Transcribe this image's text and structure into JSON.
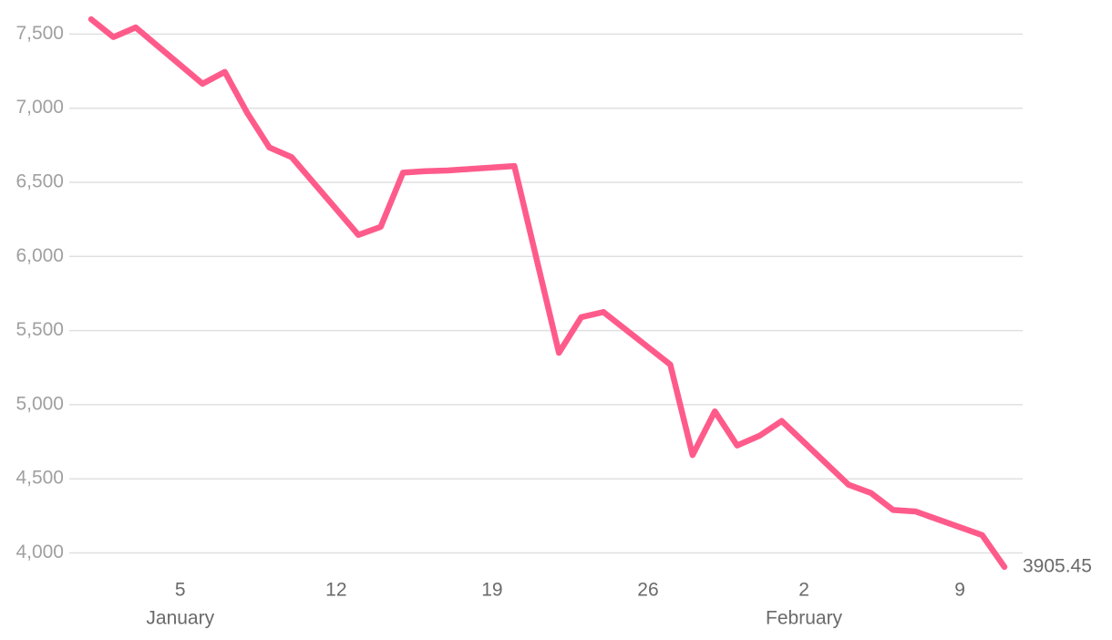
{
  "chart_data": {
    "type": "line",
    "x": [
      "01-01",
      "01-02",
      "01-03",
      "01-06",
      "01-07",
      "01-08",
      "01-09",
      "01-10",
      "01-13",
      "01-14",
      "01-15",
      "01-16",
      "01-17",
      "01-20",
      "01-22",
      "01-23",
      "01-24",
      "01-27",
      "01-28",
      "01-29",
      "01-30",
      "01-31",
      "02-01",
      "02-04",
      "02-05",
      "02-06",
      "02-07",
      "02-10",
      "02-11"
    ],
    "series": [
      {
        "color": "#fe5b8b",
        "values": [
          7600,
          7480,
          7545,
          7165,
          7245,
          6970,
          6735,
          6670,
          6145,
          6200,
          6565,
          6575,
          6580,
          6610,
          5350,
          5590,
          5625,
          5270,
          4660,
          4955,
          4725,
          4790,
          4890,
          4460,
          4405,
          4290,
          4280,
          4120,
          3905.45
        ]
      }
    ],
    "xlim": [
      "01-01",
      "02-11"
    ],
    "xticks": [
      {
        "value": "01-05",
        "label": "5"
      },
      {
        "value": "01-12",
        "label": "12"
      },
      {
        "value": "01-19",
        "label": "19"
      },
      {
        "value": "01-26",
        "label": "26"
      },
      {
        "value": "02-02",
        "label": "2"
      },
      {
        "value": "02-09",
        "label": "9"
      }
    ],
    "x_month_labels": [
      {
        "value": "01-05",
        "label": "January"
      },
      {
        "value": "02-02",
        "label": "February"
      }
    ],
    "ylim": [
      3880,
      7730
    ],
    "yticks": [
      {
        "value": 4000,
        "label": "4,000"
      },
      {
        "value": 4500,
        "label": "4,500"
      },
      {
        "value": 5000,
        "label": "5,000"
      },
      {
        "value": 5500,
        "label": "5,500"
      },
      {
        "value": 6000,
        "label": "6,000"
      },
      {
        "value": 6500,
        "label": "6,500"
      },
      {
        "value": 7000,
        "label": "7,000"
      },
      {
        "value": 7500,
        "label": "7,500"
      }
    ],
    "grid": true
  }
}
